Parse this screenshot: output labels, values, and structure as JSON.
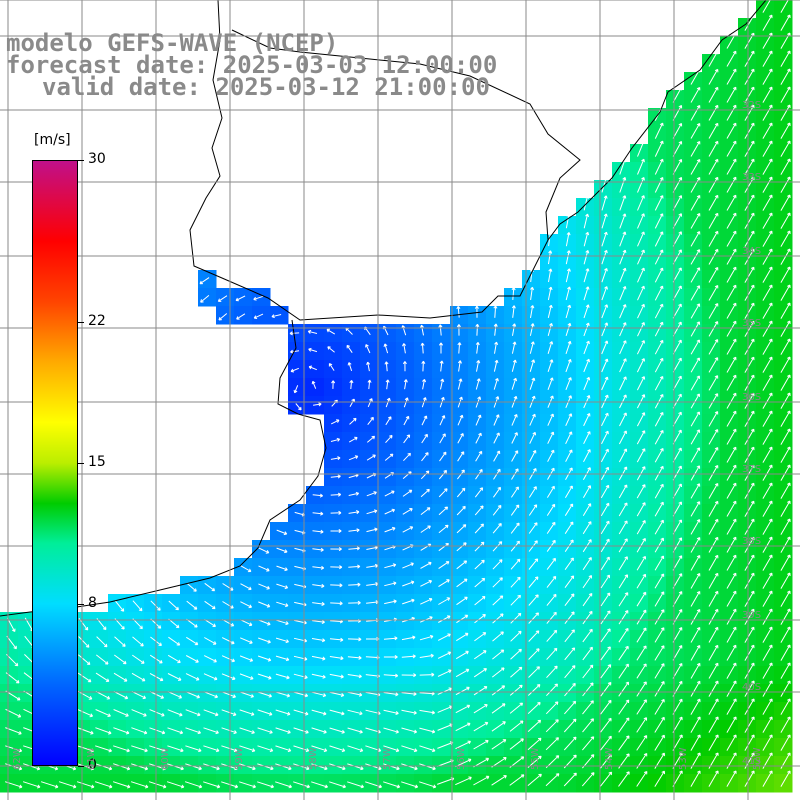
{
  "title": {
    "line1": "modelo GEFS-WAVE (NCEP)",
    "line2": "forecast date: 2025-03-03 12:00:00",
    "line3": "valid date: 2025-03-12 21:00:00"
  },
  "colorbar": {
    "unit": "[m/s]",
    "min": 0,
    "max": 30,
    "ticks": [
      "30",
      "22",
      "15",
      "8",
      "0"
    ],
    "tick_values": [
      30,
      22,
      15,
      8,
      0
    ],
    "stops": [
      {
        "value": 0,
        "color": "#0000ff"
      },
      {
        "value": 4,
        "color": "#0066ff"
      },
      {
        "value": 8,
        "color": "#00ddff"
      },
      {
        "value": 11,
        "color": "#00ee99"
      },
      {
        "value": 13,
        "color": "#00cc00"
      },
      {
        "value": 15,
        "color": "#bbee00"
      },
      {
        "value": 17,
        "color": "#ffff00"
      },
      {
        "value": 20,
        "color": "#ffaa00"
      },
      {
        "value": 23,
        "color": "#ff4400"
      },
      {
        "value": 26,
        "color": "#ff0000"
      },
      {
        "value": 30,
        "color": "#c0108a"
      }
    ]
  },
  "latitude_labels": [
    "32S",
    "33S",
    "34S",
    "35S",
    "36S",
    "37S",
    "38S",
    "39S",
    "40S",
    "41S"
  ],
  "longitude_labels": [
    "62W",
    "61W",
    "60W",
    "59W",
    "58W",
    "57W",
    "56W",
    "55W",
    "54W",
    "53W",
    "52W"
  ],
  "colors": {
    "land": "#ffffff",
    "grid": "#8a8a8a",
    "coast": "#000000",
    "arrow": "#ffffff",
    "label": "#8a8a8a"
  }
}
